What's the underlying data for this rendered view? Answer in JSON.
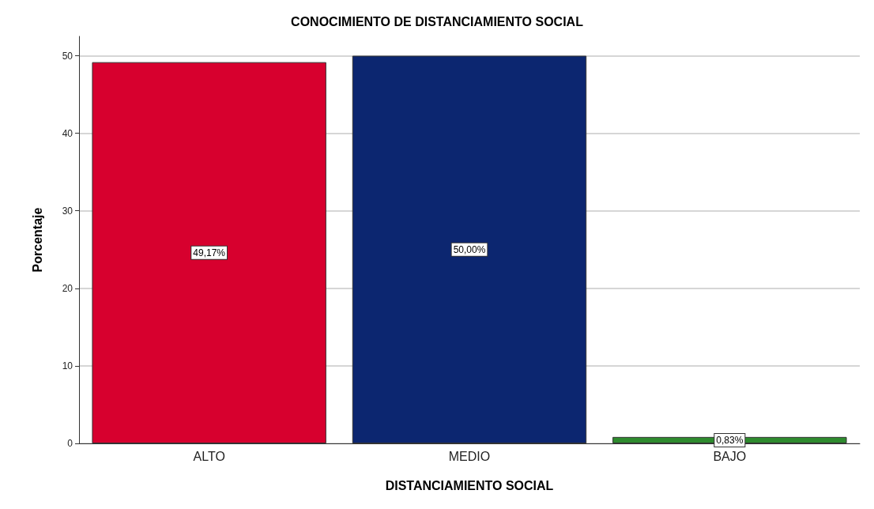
{
  "chart_data": {
    "type": "bar",
    "title": "CONOCIMIENTO DE DISTANCIAMIENTO SOCIAL",
    "xlabel": "DISTANCIAMIENTO SOCIAL",
    "ylabel": "Porcentaje",
    "categories": [
      "ALTO",
      "MEDIO",
      "BAJO"
    ],
    "values": [
      49.17,
      50.0,
      0.83
    ],
    "colors": [
      "#d7002e",
      "#0c2670",
      "#2e8b2e"
    ],
    "value_labels": [
      "49,17%",
      "50,00%",
      "0,83%"
    ],
    "ylim": [
      0,
      52.5
    ],
    "yticks": [
      0,
      10,
      20,
      30,
      40,
      50
    ],
    "grid": "y"
  }
}
